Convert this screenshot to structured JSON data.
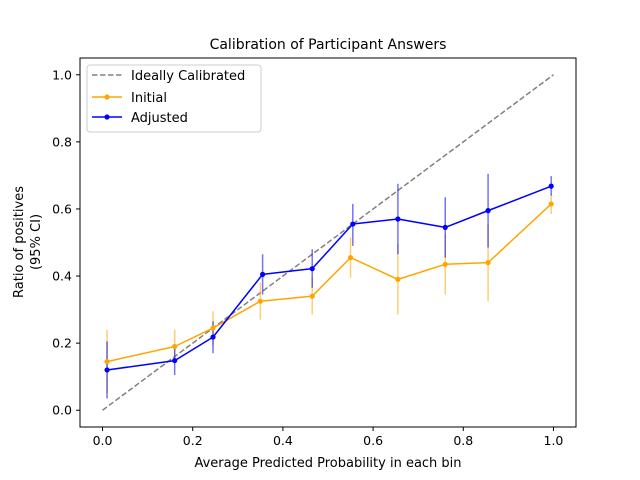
{
  "chart_data": {
    "type": "line",
    "title": "Calibration of Participant Answers",
    "xlabel": "Average Predicted Probability in each bin",
    "ylabel_lines": [
      "Ratio of positives",
      "(95% CI)"
    ],
    "xlim": [
      -0.05,
      1.05
    ],
    "ylim": [
      -0.05,
      1.05
    ],
    "xticks": [
      0.0,
      0.2,
      0.4,
      0.6,
      0.8,
      1.0
    ],
    "xtick_labels": [
      "0.0",
      "0.2",
      "0.4",
      "0.6",
      "0.8",
      "1.0"
    ],
    "yticks": [
      0.0,
      0.2,
      0.4,
      0.6,
      0.8,
      1.0
    ],
    "ytick_labels": [
      "0.0",
      "0.2",
      "0.4",
      "0.6",
      "0.8",
      "1.0"
    ],
    "grid": false,
    "legend_position": "top-left",
    "reference_line": {
      "name": "Ideally Calibrated",
      "x": [
        0.0,
        1.0
      ],
      "y": [
        0.0,
        1.0
      ],
      "color": "#808080",
      "style": "dashed"
    },
    "series": [
      {
        "name": "Initial",
        "color": "#ffa500",
        "x": [
          0.01,
          0.16,
          0.245,
          0.35,
          0.465,
          0.55,
          0.655,
          0.76,
          0.855,
          0.995
        ],
        "y": [
          0.145,
          0.19,
          0.245,
          0.325,
          0.34,
          0.455,
          0.39,
          0.435,
          0.44,
          0.615
        ],
        "y_low": [
          0.05,
          0.14,
          0.195,
          0.27,
          0.285,
          0.395,
          0.285,
          0.345,
          0.325,
          0.585
        ],
        "y_high": [
          0.24,
          0.24,
          0.295,
          0.38,
          0.395,
          0.515,
          0.495,
          0.525,
          0.555,
          0.645
        ]
      },
      {
        "name": "Adjusted",
        "color": "#0000ff",
        "x": [
          0.01,
          0.16,
          0.245,
          0.355,
          0.465,
          0.555,
          0.655,
          0.76,
          0.855,
          0.995
        ],
        "y": [
          0.12,
          0.148,
          0.218,
          0.405,
          0.422,
          0.555,
          0.57,
          0.545,
          0.595,
          0.668
        ],
        "y_low": [
          0.035,
          0.105,
          0.17,
          0.345,
          0.365,
          0.49,
          0.465,
          0.455,
          0.485,
          0.64
        ],
        "y_high": [
          0.205,
          0.19,
          0.265,
          0.465,
          0.48,
          0.615,
          0.675,
          0.635,
          0.705,
          0.698
        ]
      }
    ]
  }
}
